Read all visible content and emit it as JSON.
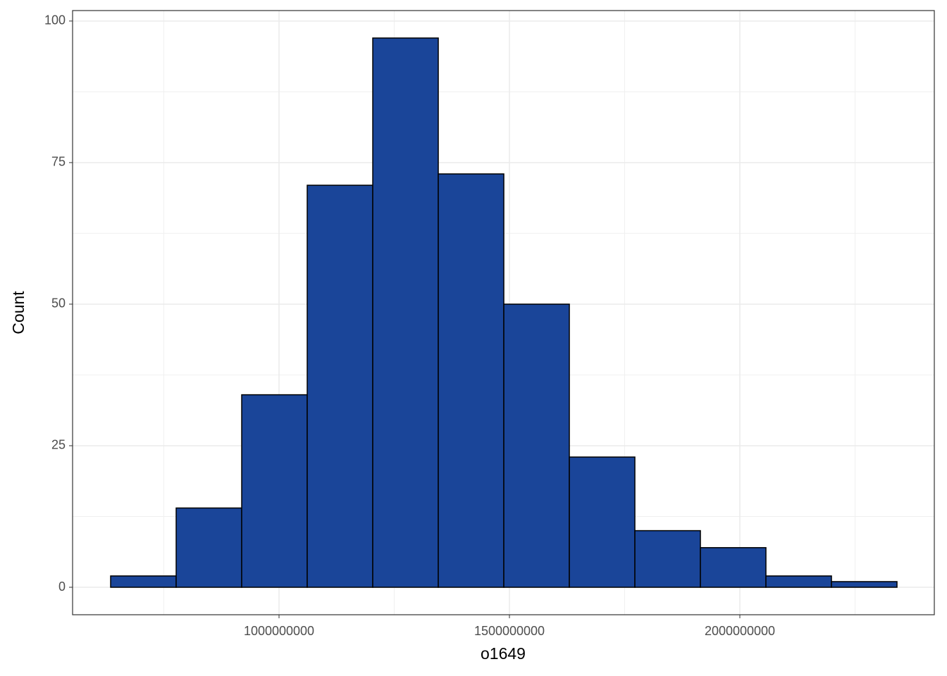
{
  "chart_data": {
    "type": "histogram",
    "x_label": "o1649",
    "y_label": "Count",
    "bins": [
      634600000,
      776800000,
      919000000,
      1061200000,
      1203400000,
      1345600000,
      1487800000,
      1630000000,
      1772200000,
      1914400000,
      2056600000,
      2198800000,
      2341000000
    ],
    "counts": [
      2,
      14,
      34,
      71,
      97,
      73,
      50,
      23,
      10,
      7,
      2,
      1
    ],
    "color": "#1a4599",
    "edge_color": "#000000",
    "xlim": [
      552000000,
      2422000000
    ],
    "xticks": [
      1000000000,
      1500000000,
      2000000000
    ],
    "ylim": [
      -4.85,
      101.85
    ],
    "yticks": [
      0,
      25,
      50,
      75,
      100
    ],
    "grid": true,
    "minor_grid": true
  }
}
